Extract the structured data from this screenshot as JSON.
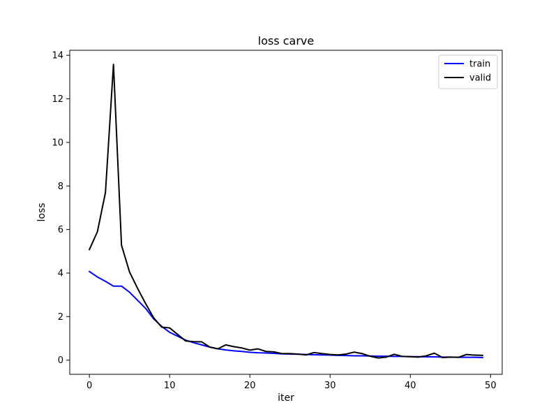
{
  "chart_data": {
    "type": "line",
    "title": "loss carve",
    "xlabel": "iter",
    "ylabel": "loss",
    "xlim": [
      -2.45,
      51.45
    ],
    "ylim": [
      -0.65,
      14.23
    ],
    "xticks": [
      0,
      10,
      20,
      30,
      40,
      50
    ],
    "yticks": [
      0,
      2,
      4,
      6,
      8,
      10,
      12,
      14
    ],
    "grid": false,
    "legend": "top-right",
    "x": [
      0,
      1,
      2,
      3,
      4,
      5,
      6,
      7,
      8,
      9,
      10,
      11,
      12,
      13,
      14,
      15,
      16,
      17,
      18,
      19,
      20,
      21,
      22,
      23,
      24,
      25,
      26,
      27,
      28,
      29,
      30,
      31,
      32,
      33,
      34,
      35,
      36,
      37,
      38,
      39,
      40,
      41,
      42,
      43,
      44,
      45,
      46,
      47,
      48,
      49
    ],
    "series": [
      {
        "name": "train",
        "color": "#0000ff",
        "values": [
          4.07,
          3.82,
          3.62,
          3.4,
          3.4,
          3.12,
          2.75,
          2.38,
          1.9,
          1.55,
          1.28,
          1.1,
          0.92,
          0.8,
          0.7,
          0.6,
          0.52,
          0.47,
          0.43,
          0.4,
          0.36,
          0.34,
          0.33,
          0.31,
          0.29,
          0.28,
          0.27,
          0.26,
          0.25,
          0.24,
          0.23,
          0.22,
          0.21,
          0.2,
          0.2,
          0.19,
          0.18,
          0.18,
          0.17,
          0.17,
          0.16,
          0.16,
          0.15,
          0.15,
          0.14,
          0.14,
          0.13,
          0.13,
          0.13,
          0.12
        ]
      },
      {
        "name": "valid",
        "color": "#000000",
        "values": [
          5.08,
          5.9,
          7.7,
          13.58,
          5.28,
          4.05,
          3.3,
          2.6,
          1.95,
          1.52,
          1.48,
          1.18,
          0.88,
          0.85,
          0.84,
          0.6,
          0.52,
          0.7,
          0.62,
          0.56,
          0.46,
          0.52,
          0.4,
          0.38,
          0.3,
          0.3,
          0.28,
          0.24,
          0.35,
          0.3,
          0.26,
          0.24,
          0.28,
          0.37,
          0.3,
          0.18,
          0.1,
          0.14,
          0.27,
          0.17,
          0.16,
          0.14,
          0.2,
          0.32,
          0.12,
          0.14,
          0.13,
          0.26,
          0.23,
          0.22
        ]
      }
    ]
  }
}
